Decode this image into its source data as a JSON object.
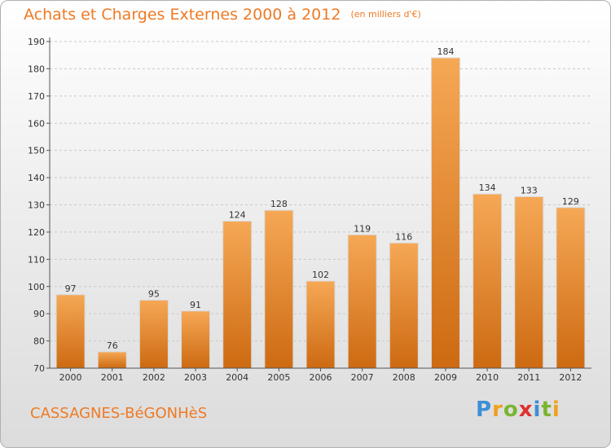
{
  "header": {
    "title": "Achats et Charges Externes 2000 à 2012",
    "unit": "(en milliers d'€)"
  },
  "footer": {
    "commune": "CASSAGNES-BéGONHèS",
    "logo": {
      "letters": [
        "P",
        "r",
        "o",
        "x",
        "i",
        "t",
        "i"
      ],
      "colors": [
        "#3c8fd6",
        "#f0a020",
        "#7ab530",
        "#e03030",
        "#3c8fd6",
        "#7ab530",
        "#f0a020"
      ]
    }
  },
  "colors": {
    "accent": "#ef7a24",
    "bar_top": "#f6a855",
    "bar_bottom": "#cd6a12",
    "grid": "#c8c8c8",
    "axis": "#555555"
  },
  "chart_data": {
    "type": "bar",
    "categories": [
      "2000",
      "2001",
      "2002",
      "2003",
      "2004",
      "2005",
      "2006",
      "2007",
      "2008",
      "2009",
      "2010",
      "2011",
      "2012"
    ],
    "values": [
      97,
      76,
      95,
      91,
      124,
      128,
      102,
      119,
      116,
      184,
      134,
      133,
      129
    ],
    "ylim": [
      70,
      190
    ],
    "yticks": [
      70,
      80,
      90,
      100,
      110,
      120,
      130,
      140,
      150,
      160,
      170,
      180,
      190
    ],
    "grid": "horizontal dashed",
    "data_labels": true
  }
}
